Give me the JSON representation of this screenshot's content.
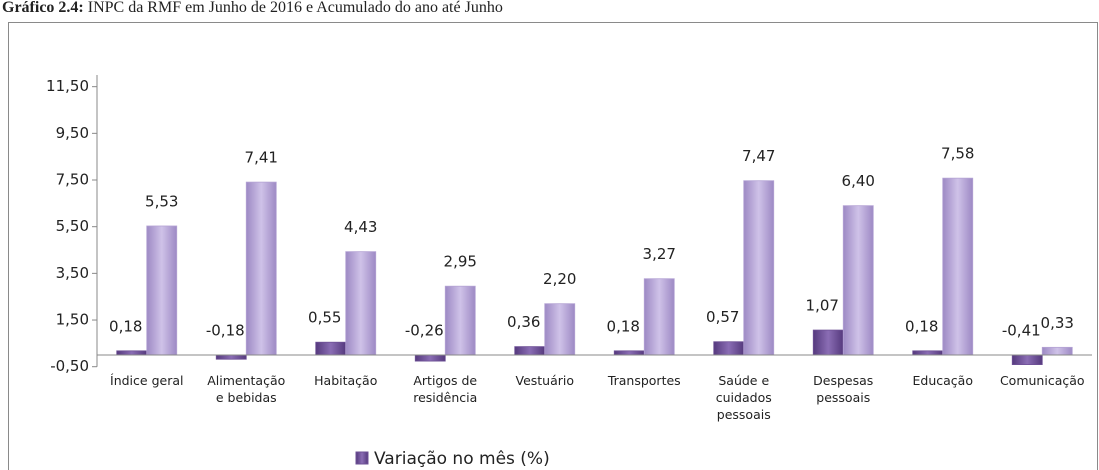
{
  "chart_data": {
    "type": "bar",
    "title_label": "Gráfico 2.4:",
    "title": "INPC da RMF em Junho de 2016 e Acumulado do ano até Junho",
    "categories": [
      "Índice geral",
      "Alimentação\ne bebidas",
      "Habitação",
      "Artigos de\nresidência",
      "Vestuário",
      "Transportes",
      "Saúde e\ncuidados\npessoais",
      "Despesas\npessoais",
      "Educação",
      "Comunicação"
    ],
    "series": [
      {
        "name": "Variação no mês (%)",
        "color": "#6e5196",
        "values": [
          0.18,
          -0.18,
          0.55,
          -0.26,
          0.36,
          0.18,
          0.57,
          1.07,
          0.18,
          -0.41
        ],
        "value_labels": [
          "0,18",
          "-0,18",
          "0,55",
          "-0,26",
          "0,36",
          "0,18",
          "0,57",
          "1,07",
          "0,18",
          "-0,41"
        ]
      },
      {
        "color": "#b4a3d4",
        "values": [
          5.53,
          7.41,
          4.43,
          2.95,
          2.2,
          3.27,
          7.47,
          6.4,
          7.58,
          0.33
        ],
        "value_labels": [
          "5,53",
          "7,41",
          "4,43",
          "2,95",
          "2,20",
          "3,27",
          "7,47",
          "6,40",
          "7,58",
          "0,33"
        ]
      }
    ],
    "ylim": [
      -0.5,
      12
    ],
    "yticks": [
      {
        "value": -0.5,
        "label": "-0,50"
      },
      {
        "value": 1.5,
        "label": "1,50"
      },
      {
        "value": 3.5,
        "label": "3,50"
      },
      {
        "value": 5.5,
        "label": "5,50"
      },
      {
        "value": 7.5,
        "label": "7,50"
      },
      {
        "value": 9.5,
        "label": "9,50"
      },
      {
        "value": 11.5,
        "label": "11,50"
      }
    ],
    "grid": false,
    "legend": "bottom"
  }
}
